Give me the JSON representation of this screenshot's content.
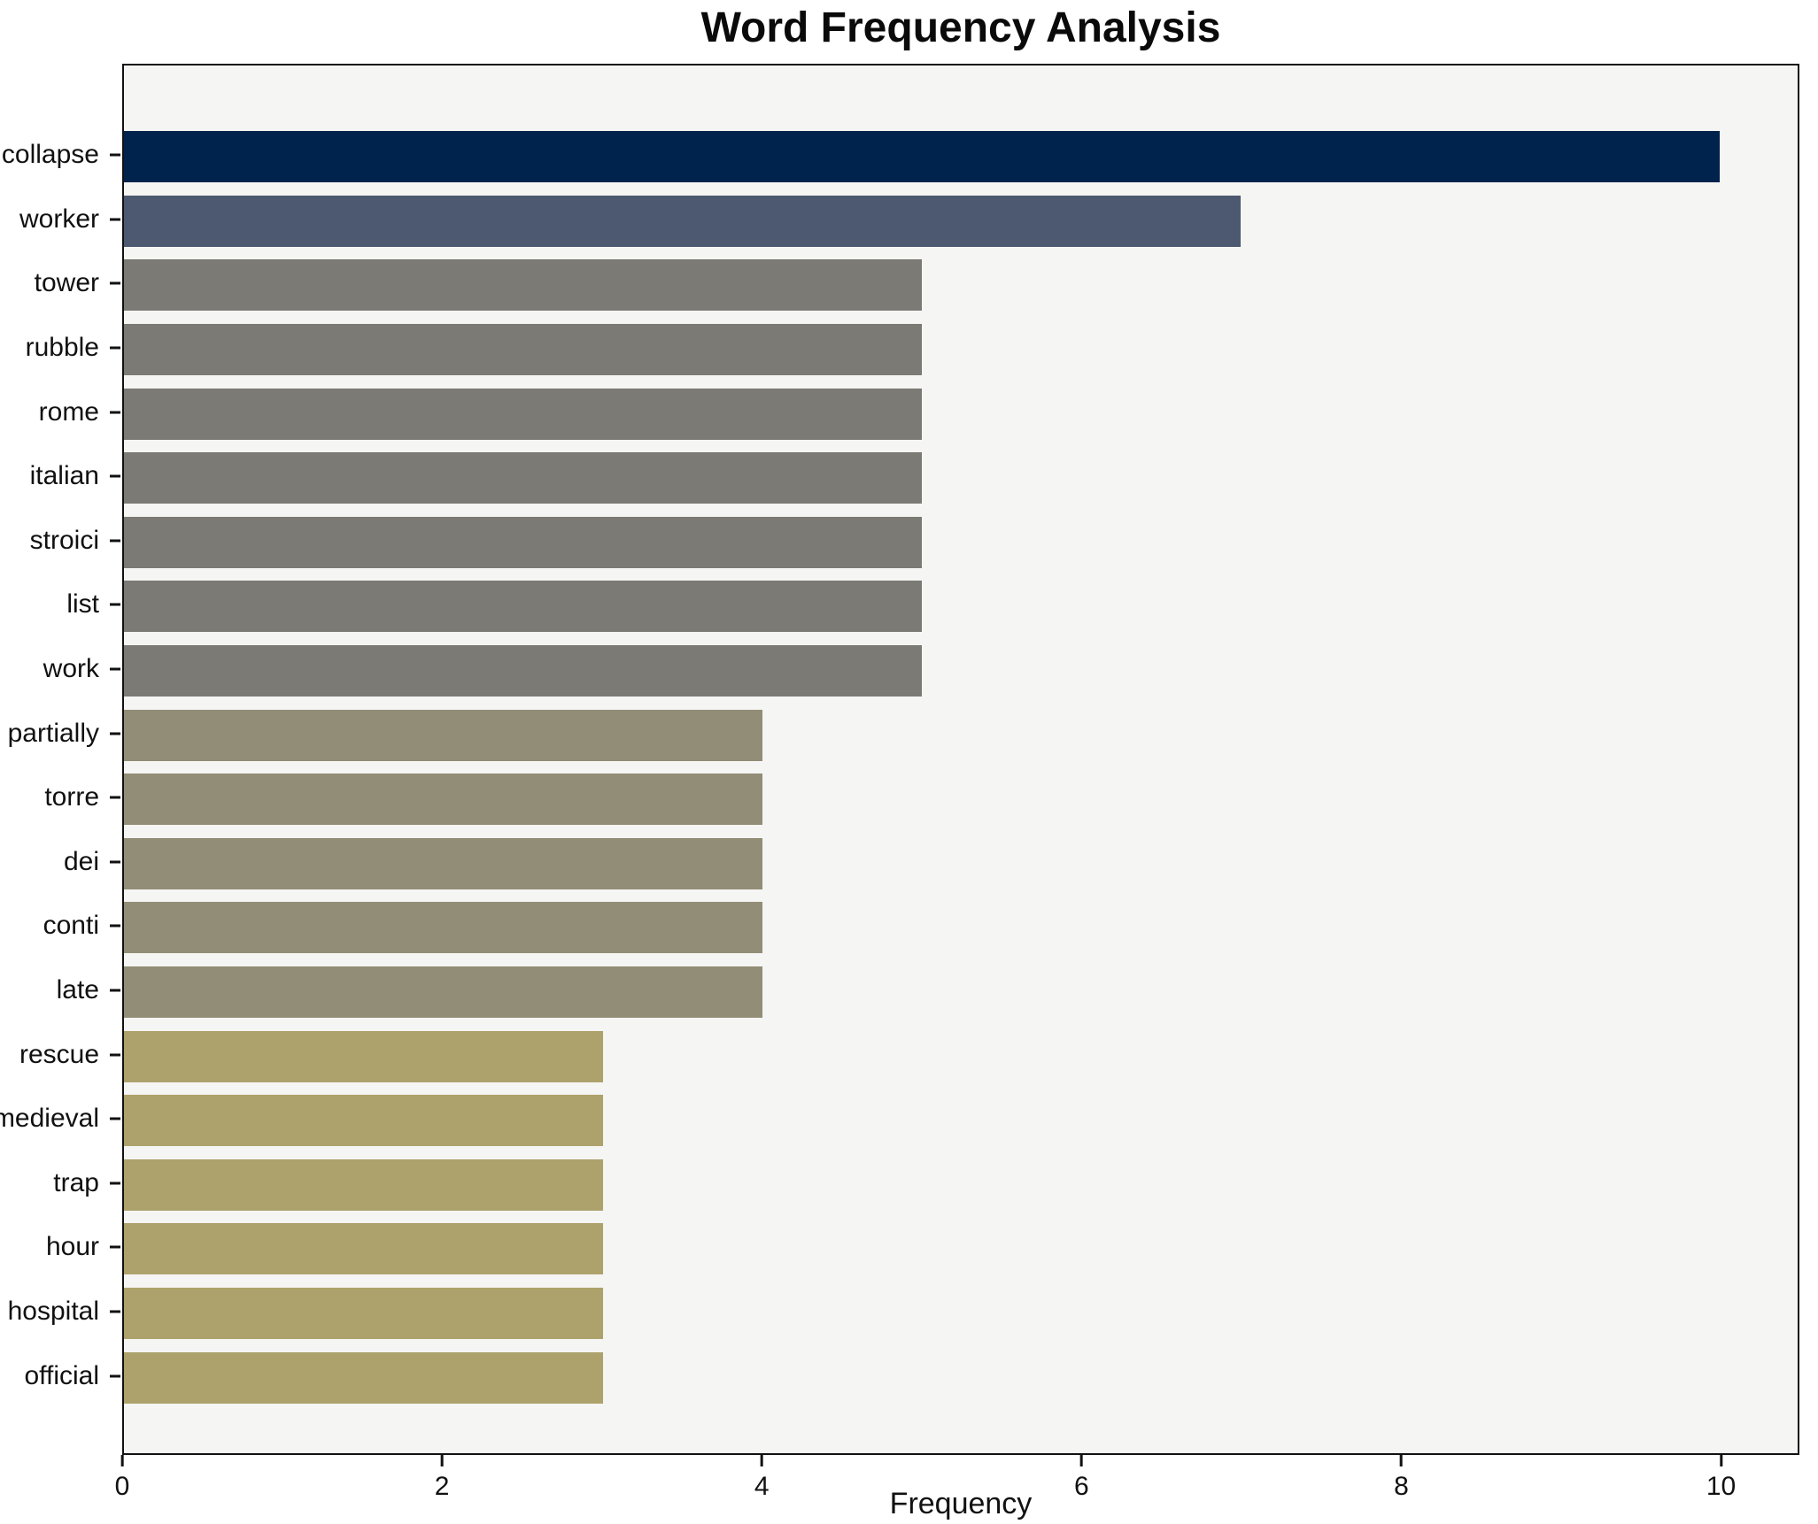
{
  "title": "Word Frequency Analysis",
  "axes": {
    "xlabel": "Frequency",
    "ylabel": ""
  },
  "colors": {
    "figure_background": "#ffffff",
    "plot_background": "#f5f5f3",
    "spine": "#111111",
    "text": "#111111",
    "bar_value_10": "#00234d",
    "bar_value_7": "#4d5970",
    "bar_value_5": "#7b7a74",
    "bar_value_4": "#928d76",
    "bar_value_3": "#ada26b"
  },
  "chart_data": {
    "type": "bar",
    "orientation": "horizontal",
    "title": "Word Frequency Analysis",
    "xlabel": "Frequency",
    "ylabel": "",
    "categories": [
      "collapse",
      "worker",
      "tower",
      "rubble",
      "rome",
      "italian",
      "stroici",
      "list",
      "work",
      "partially",
      "torre",
      "dei",
      "conti",
      "late",
      "rescue",
      "medieval",
      "trap",
      "hour",
      "hospital",
      "official"
    ],
    "values": [
      10,
      7,
      5,
      5,
      5,
      5,
      5,
      5,
      5,
      4,
      4,
      4,
      4,
      4,
      3,
      3,
      3,
      3,
      3,
      3
    ],
    "bar_colors": [
      "#00234d",
      "#4d5970",
      "#7b7a74",
      "#7b7a74",
      "#7b7a74",
      "#7b7a74",
      "#7b7a74",
      "#7b7a74",
      "#7b7a74",
      "#928d76",
      "#928d76",
      "#928d76",
      "#928d76",
      "#928d76",
      "#ada26b",
      "#ada26b",
      "#ada26b",
      "#ada26b",
      "#ada26b",
      "#ada26b"
    ],
    "xticks": [
      0,
      2,
      4,
      6,
      8,
      10
    ],
    "xlim": [
      0,
      10.49
    ],
    "grid": false,
    "legend": null
  }
}
